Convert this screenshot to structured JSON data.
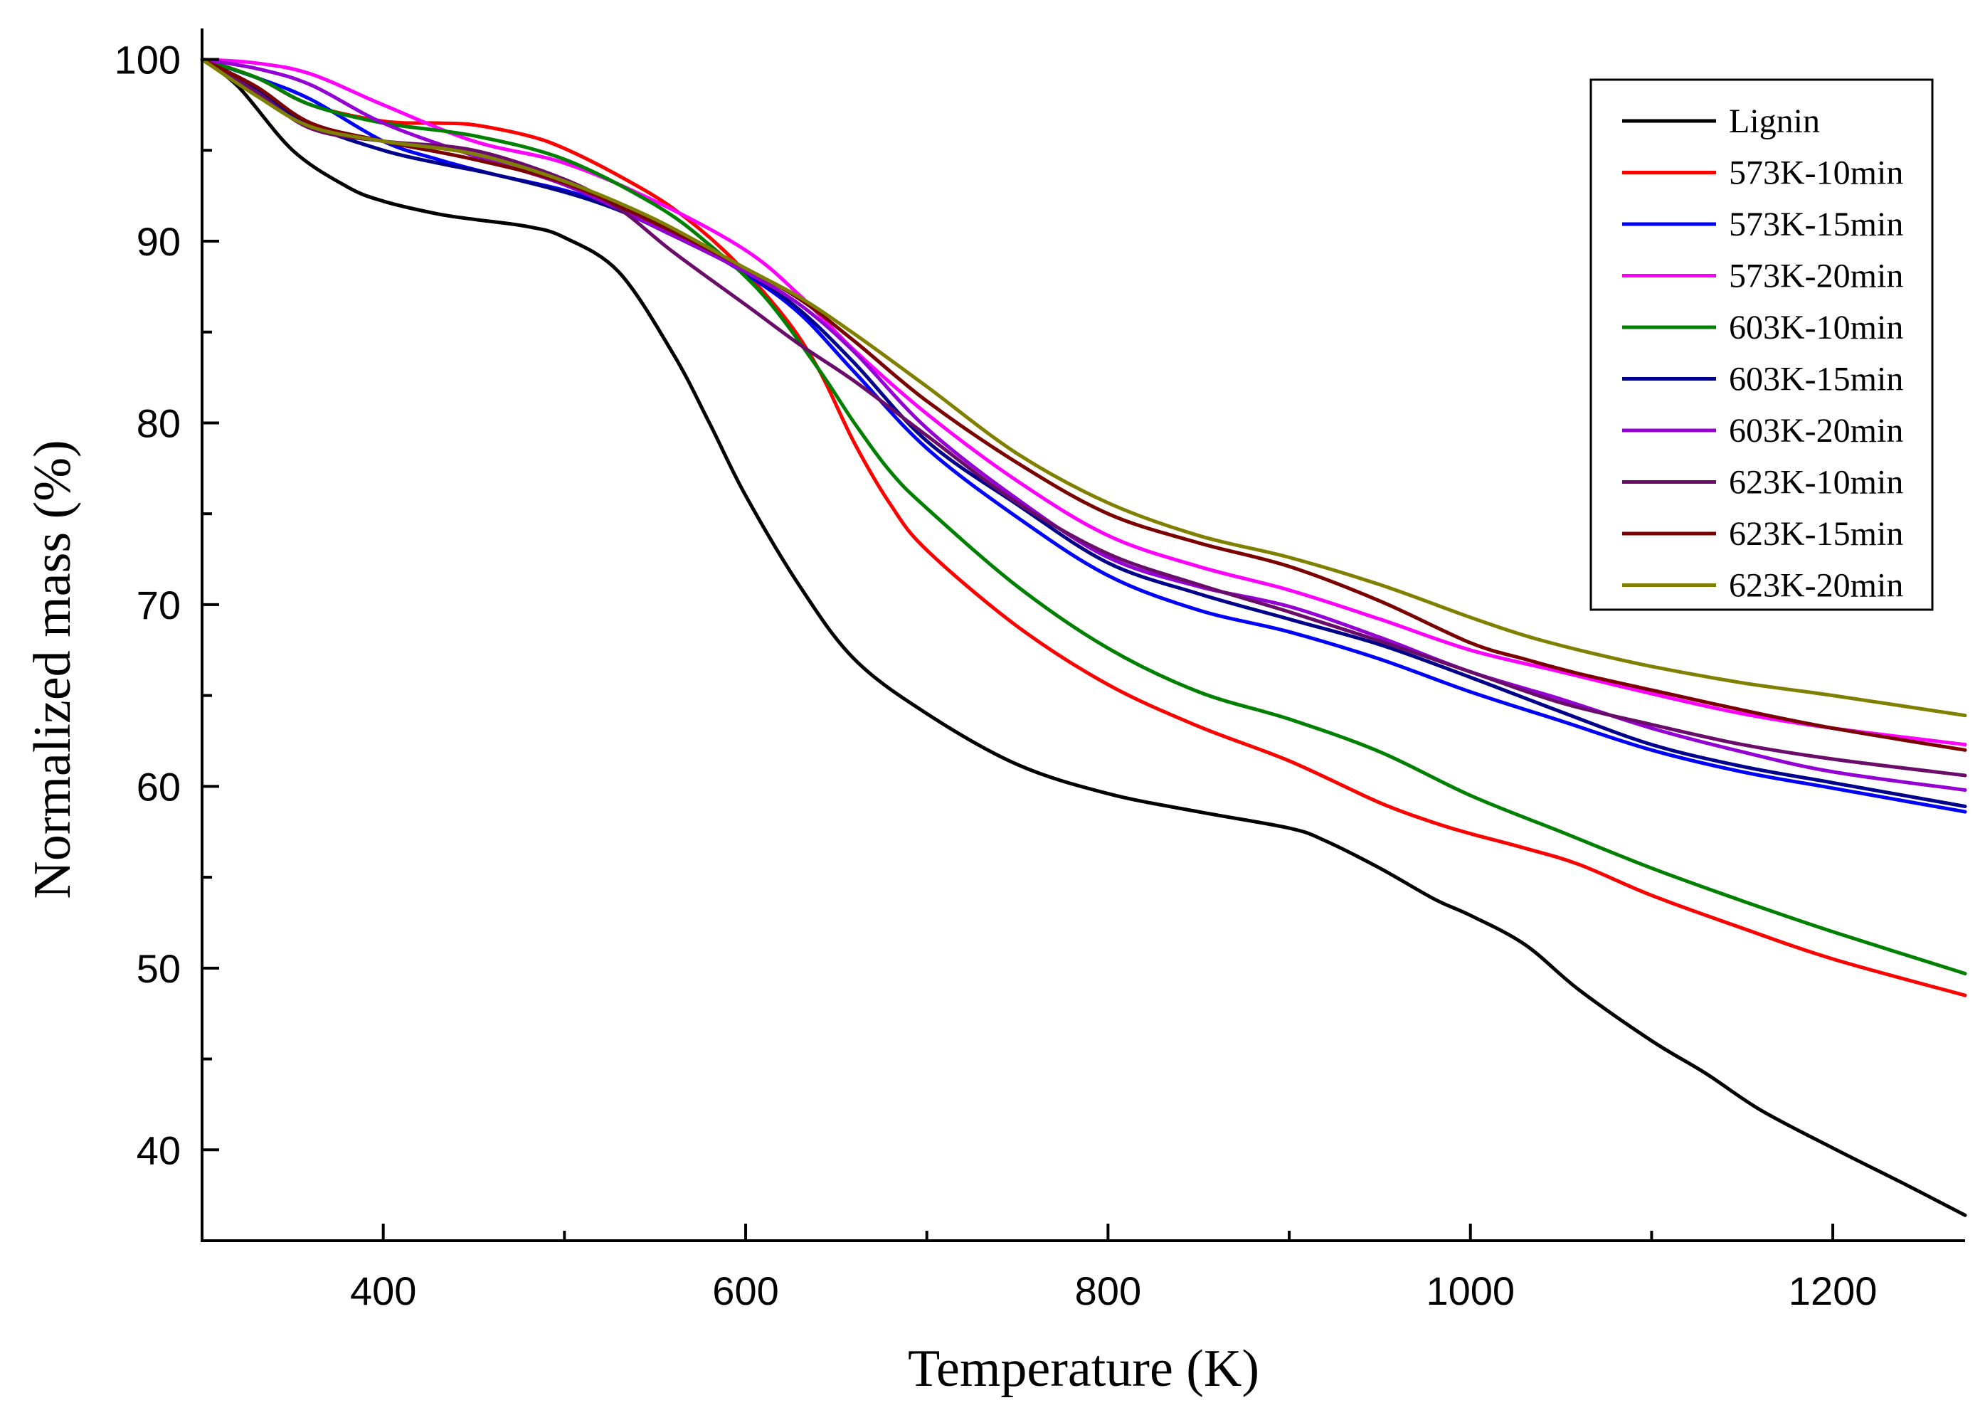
{
  "chart_data": {
    "type": "line",
    "title": "",
    "xlabel": "Temperature (K)",
    "ylabel": "Normalized mass (%)",
    "xlim": [
      300,
      1273
    ],
    "ylim": [
      35,
      101
    ],
    "x_ticks": [
      400,
      600,
      800,
      1000,
      1200
    ],
    "y_ticks": [
      40,
      50,
      60,
      70,
      80,
      90,
      100
    ],
    "x_tick_labels": [
      "400",
      "600",
      "800",
      "1000",
      "1200"
    ],
    "y_tick_labels": [
      "40",
      "50",
      "60",
      "70",
      "80",
      "90",
      "100"
    ],
    "grid": false,
    "legend_position": "top-right",
    "series": [
      {
        "name": "Lignin",
        "color": "#000000",
        "x": [
          300,
          320,
          350,
          380,
          400,
          430,
          450,
          480,
          500,
          530,
          560,
          580,
          600,
          630,
          660,
          700,
          750,
          800,
          850,
          900,
          920,
          950,
          980,
          1000,
          1030,
          1060,
          1100,
          1130,
          1160,
          1200,
          1240,
          1273
        ],
        "y": [
          100,
          98.5,
          95,
          93,
          92.2,
          91.5,
          91.2,
          90.8,
          90.2,
          88.3,
          83.8,
          80,
          76,
          71,
          67,
          64,
          61.2,
          59.6,
          58.6,
          57.7,
          57,
          55.5,
          53.8,
          52.9,
          51.3,
          48.8,
          46,
          44.2,
          42.2,
          40.1,
          38.1,
          36.4
        ]
      },
      {
        "name": "573K-10min",
        "color": "#ff0000",
        "x": [
          300,
          330,
          360,
          400,
          430,
          450,
          480,
          500,
          530,
          560,
          590,
          620,
          640,
          660,
          680,
          700,
          750,
          800,
          850,
          900,
          950,
          980,
          1000,
          1030,
          1060,
          1100,
          1150,
          1200,
          1273
        ],
        "y": [
          100,
          99,
          97.5,
          96.6,
          96.5,
          96.4,
          95.8,
          95.1,
          93.6,
          91.8,
          89.3,
          86,
          83,
          78.9,
          75.5,
          73,
          68.8,
          65.6,
          63.3,
          61.4,
          59.1,
          58,
          57.4,
          56.6,
          55.7,
          54,
          52.2,
          50.5,
          48.5
        ]
      },
      {
        "name": "573K-15min",
        "color": "#0000ff",
        "x": [
          300,
          330,
          360,
          400,
          430,
          460,
          500,
          530,
          560,
          600,
          630,
          660,
          700,
          750,
          800,
          850,
          900,
          950,
          1000,
          1050,
          1100,
          1150,
          1200,
          1273
        ],
        "y": [
          100,
          99,
          97.8,
          95.5,
          94.5,
          93.7,
          92.8,
          91.8,
          90.5,
          88.2,
          86,
          82.8,
          78.6,
          74.8,
          71.6,
          69.7,
          68.5,
          67,
          65.2,
          63.6,
          62,
          60.8,
          59.9,
          58.6
        ]
      },
      {
        "name": "573K-20min",
        "color": "#ff00ff",
        "x": [
          300,
          330,
          360,
          400,
          450,
          500,
          550,
          600,
          630,
          660,
          700,
          750,
          800,
          850,
          900,
          950,
          1000,
          1050,
          1100,
          1150,
          1200,
          1273
        ],
        "y": [
          100,
          99.8,
          99.2,
          97.5,
          95.5,
          94.3,
          92.2,
          89.5,
          87,
          84,
          80.5,
          76.8,
          73.8,
          72.1,
          70.8,
          69.2,
          67.5,
          66.3,
          65.1,
          64,
          63.2,
          62.3
        ]
      },
      {
        "name": "603K-10min",
        "color": "#008000",
        "x": [
          300,
          330,
          360,
          400,
          450,
          500,
          550,
          580,
          610,
          640,
          660,
          680,
          700,
          750,
          800,
          850,
          900,
          950,
          1000,
          1050,
          1100,
          1150,
          1200,
          1273
        ],
        "y": [
          100,
          99,
          97.5,
          96.5,
          95.8,
          94.5,
          92,
          89.8,
          87,
          83,
          80,
          77.3,
          75.3,
          71,
          67.6,
          65.2,
          63.7,
          61.9,
          59.5,
          57.5,
          55.5,
          53.7,
          52,
          49.7
        ]
      },
      {
        "name": "603K-15min",
        "color": "#00008b",
        "x": [
          300,
          330,
          360,
          400,
          430,
          460,
          500,
          530,
          560,
          600,
          630,
          660,
          700,
          750,
          800,
          850,
          900,
          950,
          1000,
          1050,
          1100,
          1150,
          1200,
          1273
        ],
        "y": [
          100,
          98.3,
          96.4,
          95,
          94.3,
          93.7,
          92.7,
          91.7,
          90.3,
          88.3,
          86.2,
          83.3,
          79,
          75.5,
          72.3,
          70.6,
          69.2,
          67.8,
          66,
          64.1,
          62.3,
          61.1,
          60.2,
          58.9
        ]
      },
      {
        "name": "603K-20min",
        "color": "#9400d3",
        "x": [
          300,
          330,
          360,
          400,
          450,
          500,
          550,
          600,
          630,
          660,
          700,
          750,
          800,
          850,
          900,
          950,
          1000,
          1050,
          1100,
          1150,
          1200,
          1273
        ],
        "y": [
          100,
          99.5,
          98.6,
          96.5,
          94.7,
          93.1,
          90.8,
          88.3,
          86.5,
          83.9,
          79.7,
          75.8,
          72.6,
          71,
          69.9,
          68.2,
          66.3,
          64.8,
          63.2,
          61.9,
          60.8,
          59.8
        ]
      },
      {
        "name": "623K-10min",
        "color": "#6a0d6a",
        "x": [
          300,
          330,
          360,
          400,
          450,
          500,
          530,
          560,
          600,
          630,
          660,
          700,
          750,
          800,
          850,
          900,
          950,
          1000,
          1050,
          1100,
          1150,
          1200,
          1273
        ],
        "y": [
          100,
          98.2,
          96.2,
          95.5,
          95,
          93.4,
          91.8,
          89.4,
          86.5,
          84.3,
          82.3,
          79.3,
          75.6,
          72.8,
          71.1,
          69.6,
          68,
          66.3,
          64.6,
          63.4,
          62.3,
          61.5,
          60.6
        ]
      },
      {
        "name": "623K-15min",
        "color": "#7b0000",
        "x": [
          300,
          330,
          360,
          400,
          450,
          500,
          550,
          600,
          630,
          660,
          700,
          750,
          800,
          850,
          900,
          950,
          1000,
          1030,
          1060,
          1100,
          1150,
          1200,
          1273
        ],
        "y": [
          100,
          98.5,
          96.5,
          95.5,
          94.5,
          93.2,
          91,
          88.5,
          86.8,
          84.5,
          81.2,
          77.8,
          75,
          73.4,
          72.1,
          70.2,
          67.9,
          67,
          66.2,
          65.3,
          64.2,
          63.2,
          62
        ]
      },
      {
        "name": "623K-20min",
        "color": "#808000",
        "x": [
          300,
          330,
          360,
          400,
          450,
          500,
          550,
          600,
          630,
          660,
          700,
          750,
          800,
          850,
          900,
          950,
          1000,
          1030,
          1060,
          1100,
          1150,
          1200,
          1273
        ],
        "y": [
          100,
          98,
          96.3,
          95.5,
          94.8,
          93.3,
          91.2,
          88.5,
          86.9,
          84.9,
          82,
          78.3,
          75.6,
          73.8,
          72.6,
          71.1,
          69.3,
          68.3,
          67.5,
          66.6,
          65.7,
          65,
          63.9
        ]
      }
    ]
  }
}
